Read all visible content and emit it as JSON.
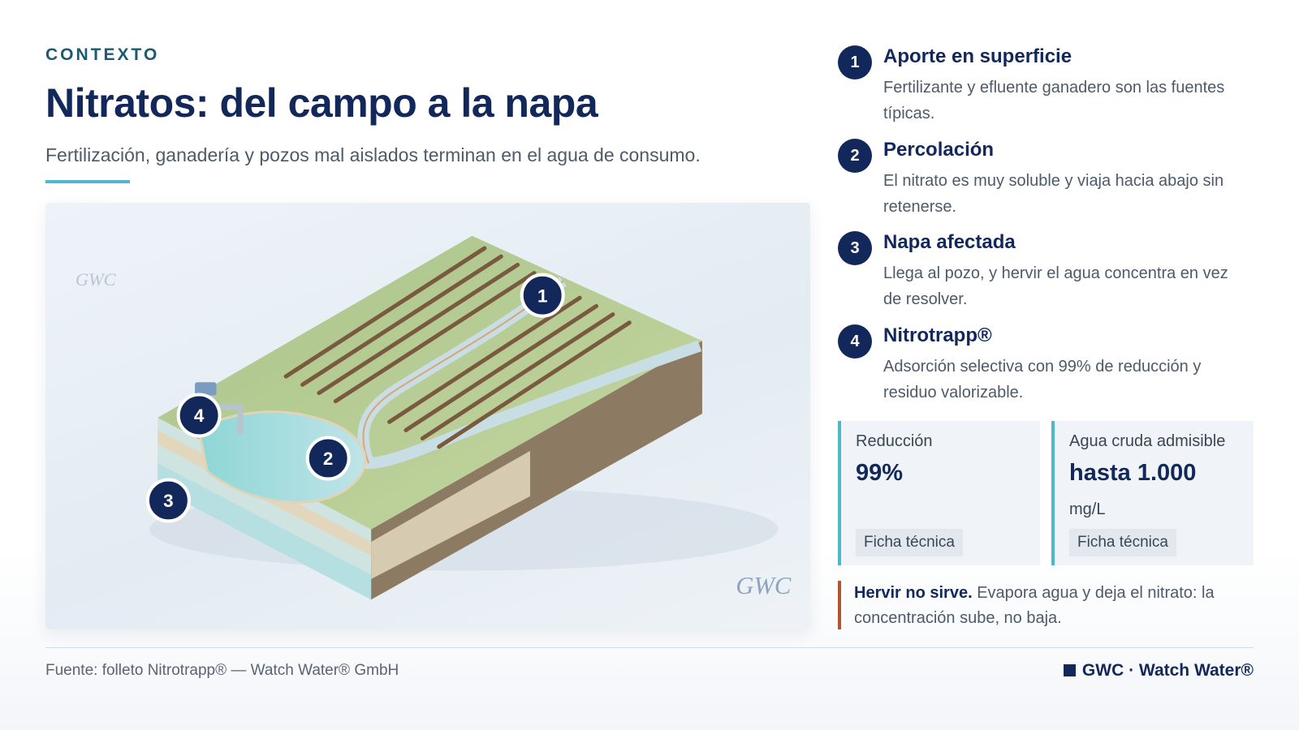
{
  "header": {
    "kicker": "CONTEXTO",
    "title": "Nitratos: del campo a la napa",
    "subtitle": "Fertilización, ganadería y pozos mal aislados terminan en el agua de consumo."
  },
  "illustration": {
    "watermark": "GWC",
    "callouts": [
      "1",
      "2",
      "3",
      "4"
    ]
  },
  "steps": [
    {
      "number": "1",
      "title": "Aporte en superficie",
      "text": "Fertilizante y efluente ganadero son las fuentes típicas."
    },
    {
      "number": "2",
      "title": "Percolación",
      "text": "El nitrato es muy soluble y viaja hacia abajo sin retenerse."
    },
    {
      "number": "3",
      "title": "Napa afectada",
      "text": "Llega al pozo, y hervir el agua concentra en vez de resolver."
    },
    {
      "number": "4",
      "title": "Nitrotrapp®",
      "text": "Adsorción selectiva con 99% de reducción y residuo valorizable."
    }
  ],
  "stats": [
    {
      "label": "Reducción",
      "value": "99%",
      "link": "Ficha técnica"
    },
    {
      "label": "Agua cruda admisible",
      "value": "hasta 1.000",
      "unit": "mg/L",
      "link": "Ficha técnica"
    }
  ],
  "note": {
    "strong": "Hervir no sirve.",
    "text": "Evapora agua y deja el nitrato: la concentración sube, no baja."
  },
  "footer": {
    "source": "Fuente: folleto Nitrotrapp® — Watch Water® GmbH",
    "brand": "GWC · Watch Water®"
  }
}
